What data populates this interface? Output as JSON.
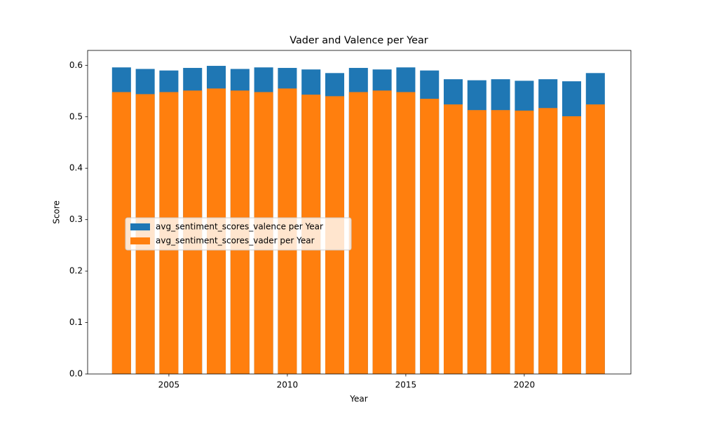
{
  "chart_data": {
    "type": "bar",
    "title": "Vader and Valence per Year",
    "xlabel": "Year",
    "ylabel": "Score",
    "x": [
      2003,
      2004,
      2005,
      2006,
      2007,
      2008,
      2009,
      2010,
      2011,
      2012,
      2013,
      2014,
      2015,
      2016,
      2017,
      2018,
      2019,
      2020,
      2021,
      2022,
      2023
    ],
    "series": [
      {
        "name": "avg_sentiment_scores_valence per Year",
        "color": "#1f77b4",
        "values": [
          0.596,
          0.593,
          0.59,
          0.595,
          0.599,
          0.593,
          0.596,
          0.595,
          0.592,
          0.585,
          0.595,
          0.592,
          0.596,
          0.59,
          0.573,
          0.571,
          0.573,
          0.57,
          0.573,
          0.569,
          0.585
        ]
      },
      {
        "name": "avg_sentiment_scores_vader per Year",
        "color": "#ff7f0e",
        "values": [
          0.548,
          0.544,
          0.548,
          0.551,
          0.555,
          0.551,
          0.548,
          0.555,
          0.543,
          0.54,
          0.548,
          0.551,
          0.548,
          0.535,
          0.524,
          0.513,
          0.513,
          0.512,
          0.517,
          0.501,
          0.524
        ]
      }
    ],
    "xlim": [
      2001.57,
      2024.5
    ],
    "xticks": [
      2005,
      2010,
      2015,
      2020
    ],
    "ylim": [
      0,
      0.629
    ],
    "yticks": [
      {
        "value": 0,
        "label": "0.0"
      },
      0.1,
      0.2,
      0.3,
      0.4,
      0.5,
      0.6
    ],
    "bar_width": 0.8,
    "legend": "center left"
  }
}
